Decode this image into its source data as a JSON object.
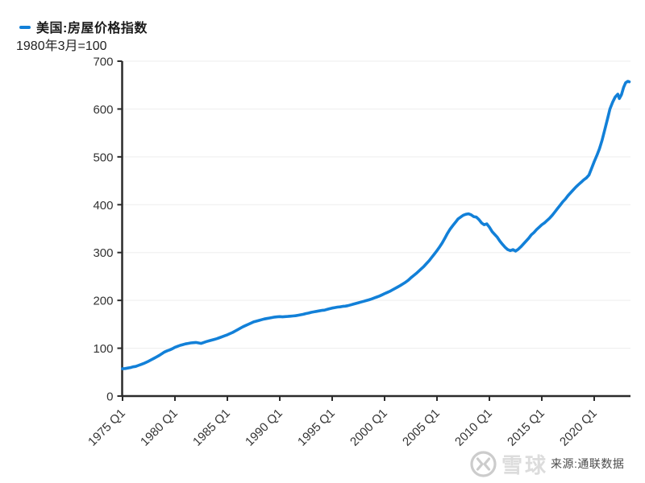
{
  "legend": {
    "series_label": "美国:房屋价格指数"
  },
  "subtitle": "1980年3月=100",
  "watermark": {
    "brand": "雪球",
    "source": "来源:通联数据"
  },
  "colors": {
    "line": "#1280d8",
    "axis": "#2b2b2b",
    "grid": "#ededed",
    "tick_text": "#333333",
    "title_text": "#1a1a1a",
    "watermark_gray": "#cccccc",
    "source_text": "#4a4a4a"
  },
  "chart_data": {
    "type": "line",
    "title": "美国:房屋价格指数",
    "subtitle": "1980年3月=100",
    "xlabel": "",
    "ylabel": "",
    "grid": true,
    "legend_position": "top-left",
    "ylim": [
      0,
      700
    ],
    "xlim": [
      1975,
      2023.5
    ],
    "yticks": [
      0,
      100,
      200,
      300,
      400,
      500,
      600,
      700
    ],
    "ytick_labels": [
      "0",
      "100",
      "200",
      "300",
      "400",
      "500",
      "600",
      "700"
    ],
    "x_tick_years": [
      1975,
      1980,
      1985,
      1990,
      1995,
      2000,
      2005,
      2010,
      2015,
      2020
    ],
    "x_tick_labels": [
      "1975 Q1",
      "1980 Q1",
      "1985 Q1",
      "1990 Q1",
      "1995 Q1",
      "2000 Q1",
      "2005 Q1",
      "2010 Q1",
      "2015 Q1",
      "2020 Q1"
    ],
    "series": [
      {
        "name": "美国:房屋价格指数",
        "points": [
          [
            1975.0,
            57
          ],
          [
            1975.25,
            57.5
          ],
          [
            1975.5,
            58.5
          ],
          [
            1975.75,
            59.5
          ],
          [
            1976.0,
            61
          ],
          [
            1976.25,
            62
          ],
          [
            1976.5,
            64
          ],
          [
            1976.75,
            66
          ],
          [
            1977.0,
            68
          ],
          [
            1977.25,
            70.5
          ],
          [
            1977.5,
            73
          ],
          [
            1977.75,
            76
          ],
          [
            1978.0,
            79
          ],
          [
            1978.25,
            82
          ],
          [
            1978.5,
            85
          ],
          [
            1978.75,
            88.5
          ],
          [
            1979.0,
            92
          ],
          [
            1979.25,
            94.5
          ],
          [
            1979.5,
            96.5
          ],
          [
            1979.75,
            99
          ],
          [
            1980.0,
            102
          ],
          [
            1980.25,
            104
          ],
          [
            1980.5,
            106
          ],
          [
            1980.75,
            107.5
          ],
          [
            1981.0,
            109
          ],
          [
            1981.25,
            110
          ],
          [
            1981.5,
            111
          ],
          [
            1981.75,
            111.5
          ],
          [
            1982.0,
            112
          ],
          [
            1982.25,
            111
          ],
          [
            1982.5,
            110
          ],
          [
            1982.75,
            112
          ],
          [
            1983.0,
            114
          ],
          [
            1983.25,
            115.5
          ],
          [
            1983.5,
            117
          ],
          [
            1983.75,
            118.5
          ],
          [
            1984.0,
            120
          ],
          [
            1984.25,
            122
          ],
          [
            1984.5,
            124
          ],
          [
            1984.75,
            126
          ],
          [
            1985.0,
            128
          ],
          [
            1985.25,
            130.5
          ],
          [
            1985.5,
            133
          ],
          [
            1985.75,
            136
          ],
          [
            1986.0,
            139
          ],
          [
            1986.25,
            142
          ],
          [
            1986.5,
            145
          ],
          [
            1986.75,
            147.5
          ],
          [
            1987.0,
            150
          ],
          [
            1987.25,
            152.5
          ],
          [
            1987.5,
            155
          ],
          [
            1987.75,
            156.5
          ],
          [
            1988.0,
            158
          ],
          [
            1988.25,
            159.5
          ],
          [
            1988.5,
            161
          ],
          [
            1988.75,
            162
          ],
          [
            1989.0,
            163
          ],
          [
            1989.25,
            164
          ],
          [
            1989.5,
            165
          ],
          [
            1989.75,
            165.5
          ],
          [
            1990.0,
            166
          ],
          [
            1990.25,
            165.5
          ],
          [
            1990.5,
            166
          ],
          [
            1990.75,
            166.5
          ],
          [
            1991.0,
            167
          ],
          [
            1991.25,
            167.5
          ],
          [
            1991.5,
            168
          ],
          [
            1991.75,
            169
          ],
          [
            1992.0,
            170
          ],
          [
            1992.25,
            171
          ],
          [
            1992.5,
            172.5
          ],
          [
            1992.75,
            173.5
          ],
          [
            1993.0,
            175
          ],
          [
            1993.25,
            176
          ],
          [
            1993.5,
            177
          ],
          [
            1993.75,
            178
          ],
          [
            1994.0,
            179
          ],
          [
            1994.25,
            179.5
          ],
          [
            1994.5,
            181
          ],
          [
            1994.75,
            182.5
          ],
          [
            1995.0,
            184
          ],
          [
            1995.25,
            185
          ],
          [
            1995.5,
            186
          ],
          [
            1995.75,
            186.5
          ],
          [
            1996.0,
            187.5
          ],
          [
            1996.25,
            188
          ],
          [
            1996.5,
            189
          ],
          [
            1996.75,
            190.5
          ],
          [
            1997.0,
            192
          ],
          [
            1997.25,
            193.5
          ],
          [
            1997.5,
            195
          ],
          [
            1997.75,
            196.5
          ],
          [
            1998.0,
            198
          ],
          [
            1998.25,
            199.5
          ],
          [
            1998.5,
            201
          ],
          [
            1998.75,
            203
          ],
          [
            1999.0,
            205
          ],
          [
            1999.25,
            207
          ],
          [
            1999.5,
            209
          ],
          [
            1999.75,
            211.5
          ],
          [
            2000.0,
            214
          ],
          [
            2000.25,
            216.5
          ],
          [
            2000.5,
            219
          ],
          [
            2000.75,
            222
          ],
          [
            2001.0,
            225
          ],
          [
            2001.25,
            228
          ],
          [
            2001.5,
            231
          ],
          [
            2001.75,
            234.5
          ],
          [
            2002.0,
            238
          ],
          [
            2002.25,
            242
          ],
          [
            2002.5,
            247
          ],
          [
            2002.75,
            251.5
          ],
          [
            2003.0,
            256
          ],
          [
            2003.25,
            261
          ],
          [
            2003.5,
            266
          ],
          [
            2003.75,
            271
          ],
          [
            2004.0,
            277
          ],
          [
            2004.25,
            283
          ],
          [
            2004.5,
            290
          ],
          [
            2004.75,
            297
          ],
          [
            2005.0,
            304
          ],
          [
            2005.25,
            312
          ],
          [
            2005.5,
            320
          ],
          [
            2005.75,
            330
          ],
          [
            2006.0,
            340
          ],
          [
            2006.25,
            349
          ],
          [
            2006.5,
            356
          ],
          [
            2006.75,
            363
          ],
          [
            2007.0,
            370
          ],
          [
            2007.25,
            374
          ],
          [
            2007.5,
            378
          ],
          [
            2007.75,
            380
          ],
          [
            2008.0,
            381
          ],
          [
            2008.25,
            379
          ],
          [
            2008.5,
            375
          ],
          [
            2008.75,
            374
          ],
          [
            2009.0,
            369
          ],
          [
            2009.25,
            362
          ],
          [
            2009.5,
            358
          ],
          [
            2009.75,
            360
          ],
          [
            2010.0,
            353
          ],
          [
            2010.25,
            344
          ],
          [
            2010.5,
            338
          ],
          [
            2010.75,
            332
          ],
          [
            2011.0,
            324
          ],
          [
            2011.25,
            317
          ],
          [
            2011.5,
            311
          ],
          [
            2011.75,
            306
          ],
          [
            2012.0,
            304
          ],
          [
            2012.25,
            306
          ],
          [
            2012.5,
            303
          ],
          [
            2012.75,
            307
          ],
          [
            2013.0,
            312
          ],
          [
            2013.25,
            318
          ],
          [
            2013.5,
            324
          ],
          [
            2013.75,
            330
          ],
          [
            2014.0,
            337
          ],
          [
            2014.25,
            342
          ],
          [
            2014.5,
            348
          ],
          [
            2014.75,
            353
          ],
          [
            2015.0,
            358
          ],
          [
            2015.25,
            362
          ],
          [
            2015.5,
            367
          ],
          [
            2015.75,
            372
          ],
          [
            2016.0,
            378
          ],
          [
            2016.25,
            385
          ],
          [
            2016.5,
            392
          ],
          [
            2016.75,
            399
          ],
          [
            2017.0,
            406
          ],
          [
            2017.25,
            412
          ],
          [
            2017.5,
            419
          ],
          [
            2017.75,
            425
          ],
          [
            2018.0,
            431
          ],
          [
            2018.25,
            437
          ],
          [
            2018.5,
            442
          ],
          [
            2018.75,
            447
          ],
          [
            2019.0,
            452
          ],
          [
            2019.25,
            456
          ],
          [
            2019.5,
            462
          ],
          [
            2019.75,
            476
          ],
          [
            2020.0,
            490
          ],
          [
            2020.25,
            503
          ],
          [
            2020.5,
            517
          ],
          [
            2020.75,
            535
          ],
          [
            2021.0,
            556
          ],
          [
            2021.25,
            578
          ],
          [
            2021.5,
            600
          ],
          [
            2021.75,
            614
          ],
          [
            2022.0,
            625
          ],
          [
            2022.25,
            631
          ],
          [
            2022.4,
            622
          ],
          [
            2022.6,
            630
          ],
          [
            2022.8,
            645
          ],
          [
            2023.0,
            655
          ],
          [
            2023.2,
            658
          ],
          [
            2023.35,
            657
          ]
        ]
      }
    ]
  }
}
